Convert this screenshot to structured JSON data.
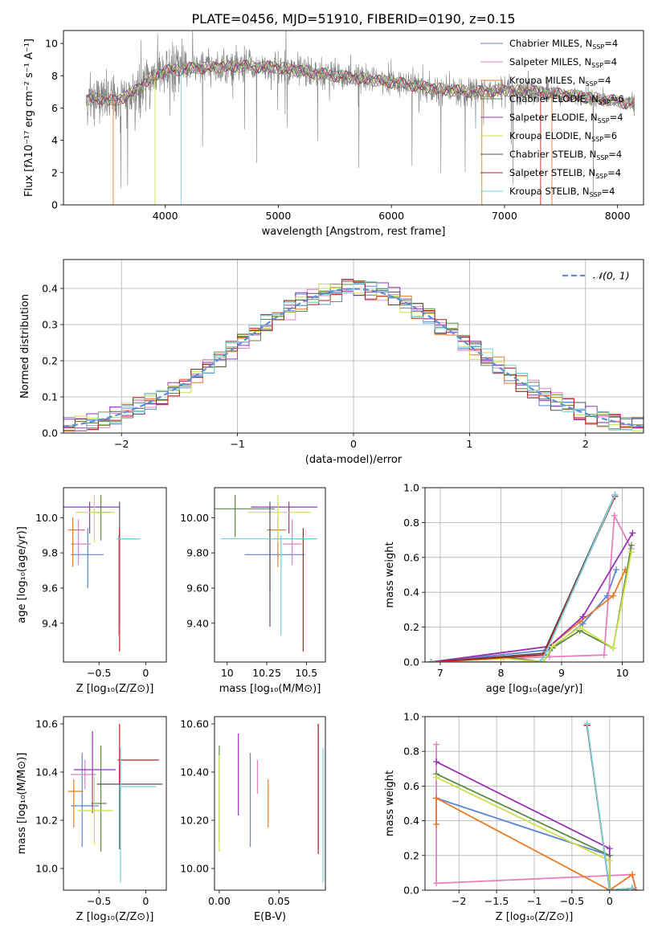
{
  "figure_title": "PLATE=0456, MJD=51910, FIBERID=0190, z=0.15",
  "colors": {
    "CM": "#5b84d6",
    "SM": "#e67fc0",
    "KM": "#e87b23",
    "CE": "#5c8a45",
    "SE": "#9932b8",
    "KE": "#cbe04a",
    "CS": "#555555",
    "SS": "#b51f1f",
    "KS": "#74d2d8",
    "obs": "#808080",
    "norm": "#5b8fd6",
    "grid": "#b0b0b0"
  },
  "chart_data": [
    {
      "id": "spectrum",
      "type": "line",
      "title": "PLATE=0456, MJD=51910, FIBERID=0190, z=0.15",
      "xlabel": "wavelength [Angstrom, rest frame]",
      "ylabel": "Flux [fλ10⁻¹⁷ erg cm⁻² s⁻¹ A⁻¹]",
      "xlim": [
        3100,
        8230
      ],
      "ylim": [
        0,
        10.8
      ],
      "xticks": [
        4000,
        5000,
        6000,
        7000,
        8000
      ],
      "yticks": [
        0,
        2,
        4,
        6,
        8,
        10
      ],
      "grid": false,
      "legend_position": "top-right",
      "legend": [
        {
          "key": "CM",
          "label": "Chabrier MILES, N",
          "sub": "SSP",
          "suffix": "=4"
        },
        {
          "key": "SM",
          "label": "Salpeter MILES, N",
          "sub": "SSP",
          "suffix": "=4"
        },
        {
          "key": "KM",
          "label": "Kroupa MILES, N",
          "sub": "SSP",
          "suffix": "=4"
        },
        {
          "key": "CE",
          "label": "Chabrier ELODIE, N",
          "sub": "SSP",
          "suffix": "=6"
        },
        {
          "key": "SE",
          "label": "Salpeter ELODIE, N",
          "sub": "SSP",
          "suffix": "=4"
        },
        {
          "key": "KE",
          "label": "Kroupa ELODIE, N",
          "sub": "SSP",
          "suffix": "=6"
        },
        {
          "key": "CS",
          "label": "Chabrier STELIB, N",
          "sub": "SSP",
          "suffix": "=4"
        },
        {
          "key": "SS",
          "label": "Salpeter STELIB, N",
          "sub": "SSP",
          "suffix": "=4"
        },
        {
          "key": "KS",
          "label": "Kroupa STELIB, N",
          "sub": "SSP",
          "suffix": "=4"
        }
      ],
      "continuum": [
        [
          3300,
          6.5
        ],
        [
          3450,
          6.6
        ],
        [
          3550,
          6.4
        ],
        [
          3700,
          6.9
        ],
        [
          3800,
          7.4
        ],
        [
          3900,
          8.0
        ],
        [
          4000,
          8.3
        ],
        [
          4300,
          8.5
        ],
        [
          4700,
          8.6
        ],
        [
          5000,
          8.5
        ],
        [
          5500,
          8.0
        ],
        [
          6000,
          7.6
        ],
        [
          6500,
          7.1
        ],
        [
          6800,
          7.0
        ],
        [
          7000,
          7.1
        ],
        [
          7300,
          7.0
        ],
        [
          7700,
          6.7
        ],
        [
          8100,
          6.3
        ]
      ],
      "observed_noise_amplitude": 1.3
    },
    {
      "id": "residuals",
      "type": "histogram",
      "xlabel": "(data-model)/error",
      "ylabel": "Normed distribution",
      "xlim": [
        -2.5,
        2.5
      ],
      "ylim": [
        0,
        0.48
      ],
      "xticks": [
        -2,
        -1,
        0,
        1,
        2
      ],
      "yticks": [
        0.0,
        0.1,
        0.2,
        0.3,
        0.4
      ],
      "grid": true,
      "bin_width": 0.1,
      "legend_position": "top-right",
      "legend": [
        {
          "key": "norm",
          "label": "𝒩(0, 1)"
        }
      ]
    },
    {
      "id": "age-vs-Z",
      "type": "errorbar",
      "xlabel": "Z [log₁₀(Z/Z⊙)]",
      "ylabel": "age  [log₁₀(age/yr)]",
      "xlim": [
        -0.88,
        0.22
      ],
      "ylim": [
        9.18,
        10.17
      ],
      "xticks": [
        -0.5,
        0.0
      ],
      "yticks": [
        9.4,
        9.6,
        9.8,
        10.0
      ],
      "grid": false,
      "points": [
        {
          "key": "CM",
          "x": -0.62,
          "xerr": [
            0.18,
            0.17
          ],
          "y": 9.79,
          "yerr": [
            0.19,
            0.15
          ]
        },
        {
          "key": "SM",
          "x": -0.72,
          "xerr": [
            0.08,
            0.13
          ],
          "y": 9.85,
          "yerr": [
            0.12,
            0.14
          ]
        },
        {
          "key": "KM",
          "x": -0.78,
          "xerr": [
            0.05,
            0.13
          ],
          "y": 9.93,
          "yerr": [
            0.21,
            0.07
          ]
        },
        {
          "key": "CE",
          "x": -0.48,
          "xerr": [
            0.08,
            0.1
          ],
          "y": 10.03,
          "yerr": [
            0.16,
            0.1
          ]
        },
        {
          "key": "SE",
          "x": -0.6,
          "xerr": [
            0.28,
            0.32
          ],
          "y": 10.06,
          "yerr": [
            0.15,
            0.03
          ]
        },
        {
          "key": "KE",
          "x": -0.55,
          "xerr": [
            0.2,
            0.22
          ],
          "y": 10.03,
          "yerr": [
            0.17,
            0.1
          ]
        },
        {
          "key": "CS",
          "x": -0.28,
          "xerr": [
            0.02,
            0.22
          ],
          "y": 9.88,
          "yerr": [
            0.5,
            0.21
          ]
        },
        {
          "key": "SS",
          "x": -0.28,
          "xerr": [
            0.02,
            0.2
          ],
          "y": 9.88,
          "yerr": [
            0.64,
            0.06
          ]
        },
        {
          "key": "KS",
          "x": -0.29,
          "xerr": [
            0.02,
            0.23
          ],
          "y": 9.88,
          "yerr": [
            0.55,
            0.02
          ]
        }
      ]
    },
    {
      "id": "age-vs-mass",
      "type": "errorbar",
      "xlabel": "mass [log₁₀(M/M⊙)]",
      "ylabel": "",
      "xlim": [
        9.92,
        10.62
      ],
      "ylim": [
        9.18,
        10.17
      ],
      "xticks": [
        10.0,
        10.25,
        10.5
      ],
      "yticks": [
        9.4,
        9.6,
        9.8,
        10.0
      ],
      "grid": false,
      "points": [
        {
          "key": "CM",
          "x": 10.27,
          "xerr": [
            0.16,
            0.22
          ],
          "y": 9.79,
          "yerr": [
            0.19,
            0.15
          ]
        },
        {
          "key": "SM",
          "x": 10.41,
          "xerr": [
            0.06,
            0.06
          ],
          "y": 9.85,
          "yerr": [
            0.12,
            0.14
          ]
        },
        {
          "key": "KM",
          "x": 10.32,
          "xerr": [
            0.07,
            0.05
          ],
          "y": 9.93,
          "yerr": [
            0.21,
            0.07
          ]
        },
        {
          "key": "CE",
          "x": 10.05,
          "xerr": [
            0.25,
            0.25
          ],
          "y": 10.05,
          "yerr": [
            0.16,
            0.08
          ]
        },
        {
          "key": "SE",
          "x": 10.39,
          "xerr": [
            0.24,
            0.18
          ],
          "y": 10.06,
          "yerr": [
            0.15,
            0.03
          ]
        },
        {
          "key": "KE",
          "x": 10.32,
          "xerr": [
            0.19,
            0.21
          ],
          "y": 10.03,
          "yerr": [
            0.17,
            0.1
          ]
        },
        {
          "key": "CS",
          "x": 10.27,
          "xerr": [
            0.02,
            0.26
          ],
          "y": 9.88,
          "yerr": [
            0.5,
            0.21
          ]
        },
        {
          "key": "SS",
          "x": 10.48,
          "xerr": [
            0.04,
            0.08
          ],
          "y": 9.88,
          "yerr": [
            0.64,
            0.06
          ]
        },
        {
          "key": "KS",
          "x": 10.34,
          "xerr": [
            0.38,
            0.23
          ],
          "y": 9.88,
          "yerr": [
            0.55,
            0.02
          ]
        }
      ]
    },
    {
      "id": "mass-weight-vs-age",
      "type": "line",
      "xlabel": "age  [log₁₀(age/yr)]",
      "ylabel": "mass weight",
      "xlim": [
        6.75,
        10.35
      ],
      "ylim": [
        0,
        1.0
      ],
      "xticks": [
        7,
        8,
        9,
        10
      ],
      "yticks": [
        0.0,
        0.2,
        0.4,
        0.6,
        0.8,
        1.0
      ],
      "grid": true,
      "series": [
        {
          "key": "CM",
          "x": [
            6.85,
            8.8,
            9.35,
            9.75,
            9.9
          ],
          "y": [
            0.0,
            0.07,
            0.22,
            0.38,
            0.53
          ]
        },
        {
          "key": "SM",
          "x": [
            6.85,
            8.8,
            9.7,
            9.87,
            10.15
          ],
          "y": [
            0.0,
            0.03,
            0.04,
            0.84,
            0.65
          ]
        },
        {
          "key": "KM",
          "x": [
            6.85,
            8.8,
            9.3,
            9.85,
            10.05
          ],
          "y": [
            0.0,
            0.09,
            0.23,
            0.38,
            0.53
          ]
        },
        {
          "key": "CE",
          "x": [
            6.85,
            8.05,
            8.7,
            8.85,
            9.3,
            9.85,
            10.15
          ],
          "y": [
            0.0,
            0.03,
            0.0,
            0.08,
            0.18,
            0.08,
            0.67
          ]
        },
        {
          "key": "SE",
          "x": [
            6.85,
            8.8,
            9.35,
            10.17
          ],
          "y": [
            0.0,
            0.09,
            0.26,
            0.74
          ]
        },
        {
          "key": "KE",
          "x": [
            6.85,
            8.05,
            8.7,
            8.85,
            9.3,
            9.85,
            10.15
          ],
          "y": [
            0.0,
            0.02,
            0.0,
            0.09,
            0.2,
            0.08,
            0.63
          ]
        },
        {
          "key": "CS",
          "x": [
            6.85,
            8.7,
            9.88
          ],
          "y": [
            0.0,
            0.05,
            0.96
          ]
        },
        {
          "key": "SS",
          "x": [
            6.85,
            8.7,
            9.88
          ],
          "y": [
            0.0,
            0.04,
            0.95
          ]
        },
        {
          "key": "KS",
          "x": [
            6.85,
            8.65,
            8.75,
            9.88
          ],
          "y": [
            0.0,
            0.0,
            0.06,
            0.96
          ]
        }
      ]
    },
    {
      "id": "mass-vs-Z",
      "type": "errorbar",
      "xlabel": "Z [log₁₀(Z/Z⊙)]",
      "ylabel": "mass [log₁₀(M/M⊙)]",
      "xlim": [
        -0.88,
        0.22
      ],
      "ylim": [
        9.91,
        10.63
      ],
      "xticks": [
        -0.5,
        0.0
      ],
      "yticks": [
        10.0,
        10.2,
        10.4,
        10.6
      ],
      "grid": false,
      "points": [
        {
          "key": "CM",
          "x": -0.68,
          "xerr": [
            0.12,
            0.18
          ],
          "y": 10.26,
          "yerr": [
            0.17,
            0.22
          ]
        },
        {
          "key": "SM",
          "x": -0.65,
          "xerr": [
            0.15,
            0.12
          ],
          "y": 10.39,
          "yerr": [
            0.06,
            0.06
          ]
        },
        {
          "key": "KM",
          "x": -0.77,
          "xerr": [
            0.06,
            0.1
          ],
          "y": 10.32,
          "yerr": [
            0.15,
            0.05
          ]
        },
        {
          "key": "CE",
          "x": -0.48,
          "xerr": [
            0.1,
            0.06
          ],
          "y": 10.27,
          "yerr": [
            0.2,
            0.24
          ]
        },
        {
          "key": "SE",
          "x": -0.57,
          "xerr": [
            0.2,
            0.25
          ],
          "y": 10.41,
          "yerr": [
            0.18,
            0.16
          ]
        },
        {
          "key": "KE",
          "x": -0.55,
          "xerr": [
            0.18,
            0.2
          ],
          "y": 10.24,
          "yerr": [
            0.14,
            0.14
          ]
        },
        {
          "key": "CS",
          "x": -0.28,
          "xerr": [
            0.24,
            0.46
          ],
          "y": 10.35,
          "yerr": [
            0.27,
            0.09
          ]
        },
        {
          "key": "SS",
          "x": -0.28,
          "xerr": [
            0.02,
            0.42
          ],
          "y": 10.45,
          "yerr": [
            0.1,
            0.15
          ]
        },
        {
          "key": "KS",
          "x": -0.27,
          "xerr": [
            0.02,
            0.38
          ],
          "y": 10.34,
          "yerr": [
            0.4,
            0.16
          ]
        }
      ]
    },
    {
      "id": "mass-vs-EBV",
      "type": "errorbar",
      "xlabel": "E(B-V)",
      "ylabel": "",
      "xlim": [
        -0.004,
        0.089
      ],
      "ylim": [
        9.91,
        10.63
      ],
      "xticks": [
        0.0,
        0.05
      ],
      "yticks": [
        10.0,
        10.2,
        10.4,
        10.6
      ],
      "grid": false,
      "points": [
        {
          "key": "CE",
          "x": 0.0,
          "y": 10.31,
          "yerr": [
            0.2,
            0.2
          ]
        },
        {
          "key": "KE",
          "x": 0.0,
          "y": 10.27,
          "yerr": [
            0.2,
            0.2
          ]
        },
        {
          "key": "SE",
          "x": 0.016,
          "y": 10.39,
          "yerr": [
            0.17,
            0.17
          ]
        },
        {
          "key": "CM",
          "x": 0.026,
          "y": 10.28,
          "yerr": [
            0.19,
            0.2
          ]
        },
        {
          "key": "SM",
          "x": 0.032,
          "y": 10.38,
          "yerr": [
            0.07,
            0.07
          ]
        },
        {
          "key": "KM",
          "x": 0.041,
          "y": 10.27,
          "yerr": [
            0.1,
            0.1
          ]
        },
        {
          "key": "CS",
          "x": 0.083,
          "y": 10.34,
          "yerr": [
            0.26,
            0.26
          ]
        },
        {
          "key": "SS",
          "x": 0.083,
          "y": 10.33,
          "yerr": [
            0.27,
            0.27
          ]
        },
        {
          "key": "KS",
          "x": 0.087,
          "y": 10.22,
          "yerr": [
            0.28,
            0.28
          ]
        }
      ]
    },
    {
      "id": "mass-weight-vs-Z",
      "type": "line",
      "xlabel": "Z [log₁₀(Z/Z⊙)]",
      "ylabel": "mass weight",
      "xlim": [
        -2.45,
        0.45
      ],
      "ylim": [
        0,
        1.0
      ],
      "xticks": [
        -2.0,
        -1.5,
        -1.0,
        -0.5,
        0.0
      ],
      "yticks": [
        0.0,
        0.2,
        0.4,
        0.6,
        0.8,
        1.0
      ],
      "grid": true,
      "series": [
        {
          "key": "CM",
          "x": [
            -2.3,
            0.0,
            0.0,
            0.3,
            0.35
          ],
          "y": [
            0.53,
            0.2,
            0.0,
            0.01,
            0.0
          ]
        },
        {
          "key": "SM",
          "x": [
            -2.3,
            -2.3,
            0.3,
            0.35
          ],
          "y": [
            0.84,
            0.04,
            0.09,
            0.0
          ]
        },
        {
          "key": "KM",
          "x": [
            -2.3,
            -2.3,
            -2.3,
            0.0,
            0.3,
            0.35
          ],
          "y": [
            0.53,
            0.38,
            0.53,
            0.0,
            0.09,
            0.0
          ]
        },
        {
          "key": "CE",
          "x": [
            -2.3,
            0.0,
            0.0,
            0.3
          ],
          "y": [
            0.67,
            0.2,
            0.0,
            0.01
          ]
        },
        {
          "key": "SE",
          "x": [
            -2.3,
            0.0,
            0.0,
            0.3
          ],
          "y": [
            0.74,
            0.24,
            0.0,
            0.01
          ]
        },
        {
          "key": "KE",
          "x": [
            -2.3,
            0.0,
            0.0,
            0.3
          ],
          "y": [
            0.65,
            0.17,
            0.0,
            0.01
          ]
        },
        {
          "key": "CS",
          "x": [
            -0.3,
            0.0,
            0.3
          ],
          "y": [
            0.95,
            0.0,
            0.01
          ]
        },
        {
          "key": "SS",
          "x": [
            -0.3,
            0.0,
            0.3
          ],
          "y": [
            0.95,
            0.0,
            0.01
          ]
        },
        {
          "key": "KS",
          "x": [
            -0.3,
            0.0,
            0.3
          ],
          "y": [
            0.96,
            0.0,
            0.01
          ]
        }
      ]
    }
  ]
}
